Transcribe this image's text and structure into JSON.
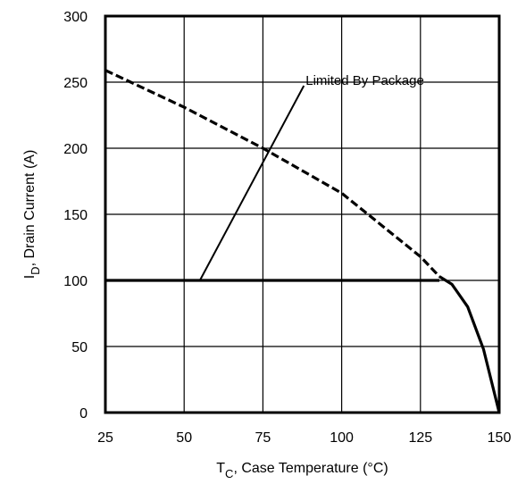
{
  "chart_data": {
    "type": "line",
    "xlabel": {
      "main": "T",
      "sub": "C",
      "rest": ", Case Temperature (°C)"
    },
    "ylabel": {
      "main": "I",
      "sub": "D",
      "rest": ",  Drain Current (A)"
    },
    "xlim": [
      25,
      150
    ],
    "ylim": [
      0,
      300
    ],
    "xticks": [
      25,
      50,
      75,
      100,
      125,
      150
    ],
    "yticks": [
      0,
      50,
      100,
      150,
      200,
      250,
      300
    ],
    "grid": true,
    "annotation": {
      "text": "Limited By Package",
      "points_to": [
        55,
        100
      ],
      "label_at": [
        88,
        250
      ]
    },
    "series": [
      {
        "style": "dashed",
        "x": [
          25,
          50,
          75,
          100,
          125,
          131
        ],
        "y": [
          259,
          231,
          200,
          166,
          118,
          103
        ]
      },
      {
        "style": "solid",
        "x": [
          25,
          131
        ],
        "y": [
          100,
          100
        ]
      },
      {
        "style": "solid",
        "x": [
          131,
          135,
          140,
          145,
          150
        ],
        "y": [
          103,
          97,
          80,
          48,
          0
        ]
      }
    ]
  }
}
